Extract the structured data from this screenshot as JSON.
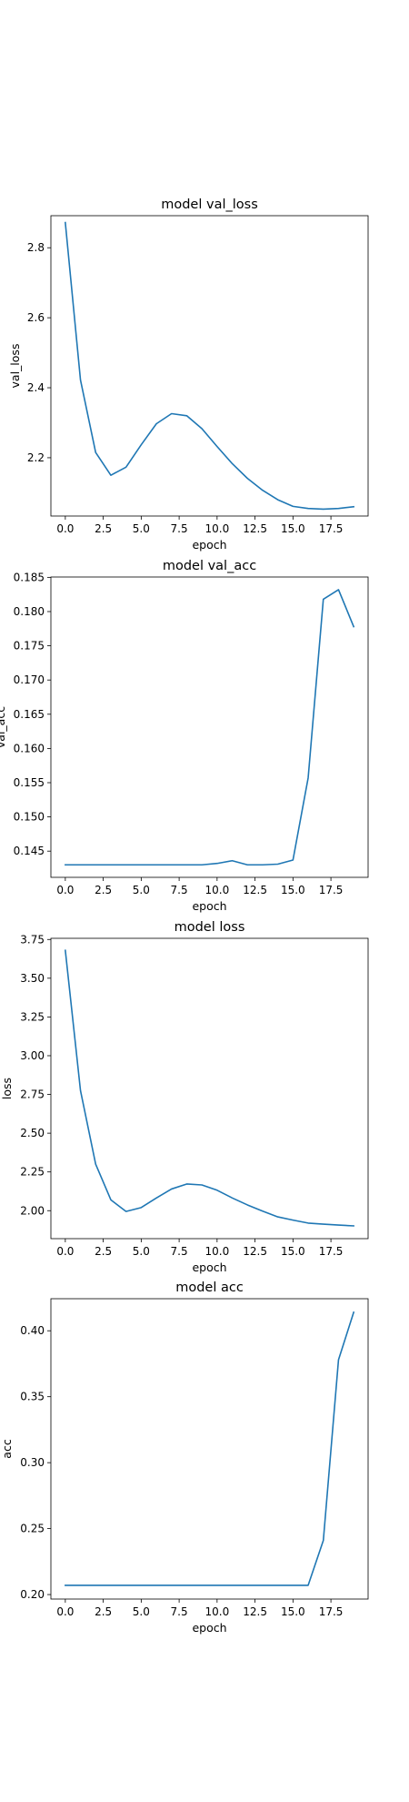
{
  "chart_data": [
    {
      "type": "line",
      "title": "model val_loss",
      "xlabel": "epoch",
      "ylabel": "val_loss",
      "color": "#1f77b4",
      "x": [
        0,
        1,
        2,
        3,
        4,
        5,
        6,
        7,
        8,
        9,
        10,
        11,
        12,
        13,
        14,
        15,
        16,
        17,
        18,
        19
      ],
      "values": [
        2.872,
        2.422,
        2.215,
        2.15,
        2.173,
        2.237,
        2.297,
        2.326,
        2.32,
        2.283,
        2.232,
        2.183,
        2.141,
        2.107,
        2.08,
        2.061,
        2.055,
        2.053,
        2.055,
        2.06
      ],
      "xlim": [
        -0.95,
        19.95
      ],
      "ylim": [
        2.0334,
        2.8916
      ],
      "xticks": [
        0,
        2.5,
        5,
        7.5,
        10,
        12.5,
        15,
        17.5
      ],
      "xtick_labels": [
        "0.0",
        "2.5",
        "5.0",
        "7.5",
        "10.0",
        "12.5",
        "15.0",
        "17.5"
      ],
      "yticks": [
        2.2,
        2.4,
        2.6,
        2.8
      ],
      "ytick_labels": [
        "2.2",
        "2.4",
        "2.6",
        "2.8"
      ],
      "grid": false
    },
    {
      "type": "line",
      "title": "model val_acc",
      "xlabel": "epoch",
      "ylabel": "val_acc",
      "color": "#1f77b4",
      "x": [
        0,
        1,
        2,
        3,
        4,
        5,
        6,
        7,
        8,
        9,
        10,
        11,
        12,
        13,
        14,
        15,
        16,
        17,
        18,
        19
      ],
      "values": [
        0.143,
        0.143,
        0.143,
        0.143,
        0.143,
        0.143,
        0.143,
        0.143,
        0.143,
        0.143,
        0.1432,
        0.1436,
        0.143,
        0.143,
        0.1431,
        0.1437,
        0.1557,
        0.1818,
        0.1832,
        0.1778
      ],
      "xlim": [
        -0.95,
        19.95
      ],
      "ylim": [
        0.14117,
        0.18505
      ],
      "xticks": [
        0,
        2.5,
        5,
        7.5,
        10,
        12.5,
        15,
        17.5
      ],
      "xtick_labels": [
        "0.0",
        "2.5",
        "5.0",
        "7.5",
        "10.0",
        "12.5",
        "15.0",
        "17.5"
      ],
      "yticks": [
        0.145,
        0.15,
        0.155,
        0.16,
        0.165,
        0.17,
        0.175,
        0.18,
        0.185
      ],
      "ytick_labels": [
        "0.145",
        "0.150",
        "0.155",
        "0.160",
        "0.165",
        "0.170",
        "0.175",
        "0.180",
        "0.185"
      ],
      "grid": false
    },
    {
      "type": "line",
      "title": "model loss",
      "xlabel": "epoch",
      "ylabel": "loss",
      "color": "#1f77b4",
      "x": [
        0,
        1,
        2,
        3,
        4,
        5,
        6,
        7,
        8,
        9,
        10,
        11,
        12,
        13,
        14,
        15,
        16,
        17,
        18,
        19
      ],
      "values": [
        3.68,
        2.775,
        2.3,
        2.07,
        1.995,
        2.02,
        2.082,
        2.14,
        2.172,
        2.166,
        2.132,
        2.082,
        2.037,
        1.997,
        1.96,
        1.939,
        1.92,
        1.913,
        1.907,
        1.902
      ],
      "xlim": [
        -0.95,
        19.95
      ],
      "ylim": [
        1.8195,
        3.7575
      ],
      "xticks": [
        0,
        2.5,
        5,
        7.5,
        10,
        12.5,
        15,
        17.5
      ],
      "xtick_labels": [
        "0.0",
        "2.5",
        "5.0",
        "7.5",
        "10.0",
        "12.5",
        "15.0",
        "17.5"
      ],
      "yticks": [
        2.0,
        2.25,
        2.5,
        2.75,
        3.0,
        3.25,
        3.5,
        3.75
      ],
      "ytick_labels": [
        "2.00",
        "2.25",
        "2.50",
        "2.75",
        "3.00",
        "3.25",
        "3.50",
        "3.75"
      ],
      "grid": false
    },
    {
      "type": "line",
      "title": "model acc",
      "xlabel": "epoch",
      "ylabel": "acc",
      "color": "#1f77b4",
      "x": [
        0,
        1,
        2,
        3,
        4,
        5,
        6,
        7,
        8,
        9,
        10,
        11,
        12,
        13,
        14,
        15,
        16,
        17,
        18,
        19
      ],
      "values": [
        0.207,
        0.207,
        0.207,
        0.207,
        0.207,
        0.207,
        0.207,
        0.207,
        0.207,
        0.207,
        0.207,
        0.207,
        0.207,
        0.207,
        0.207,
        0.207,
        0.207,
        0.241,
        0.378,
        0.414
      ],
      "xlim": [
        -0.95,
        19.95
      ],
      "ylim": [
        0.1966,
        0.4243
      ],
      "xticks": [
        0,
        2.5,
        5,
        7.5,
        10,
        12.5,
        15,
        17.5
      ],
      "xtick_labels": [
        "0.0",
        "2.5",
        "5.0",
        "7.5",
        "10.0",
        "12.5",
        "15.0",
        "17.5"
      ],
      "yticks": [
        0.2,
        0.25,
        0.3,
        0.35,
        0.4
      ],
      "ytick_labels": [
        "0.20",
        "0.25",
        "0.30",
        "0.35",
        "0.40"
      ],
      "grid": false
    }
  ]
}
